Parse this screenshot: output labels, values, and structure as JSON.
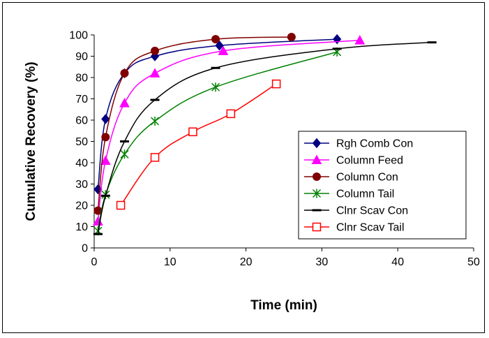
{
  "chart_data": {
    "type": "line",
    "title": "",
    "xlabel": "Time (min)",
    "ylabel": "Cumulative Recovery (%)",
    "xlim": [
      0,
      50
    ],
    "ylim": [
      0,
      100
    ],
    "x_ticks": [
      0,
      10,
      20,
      30,
      40,
      50
    ],
    "y_ticks": [
      0,
      10,
      20,
      30,
      40,
      50,
      60,
      70,
      80,
      90,
      100
    ],
    "grid": false,
    "legend_position": "bottom-right",
    "series": [
      {
        "name": "Rgh Comb Con",
        "color": "#000080",
        "marker": "diamond",
        "x": [
          0.5,
          1.5,
          4,
          8,
          16.5,
          32
        ],
        "y": [
          27.5,
          60.5,
          82,
          90,
          95,
          98
        ]
      },
      {
        "name": "Column Feed",
        "color": "#ff00ff",
        "marker": "triangle",
        "x": [
          0.5,
          1.5,
          4,
          8,
          17,
          35
        ],
        "y": [
          12.5,
          41,
          68,
          82,
          92.5,
          97.5
        ]
      },
      {
        "name": "Column Con",
        "color": "#800000",
        "marker": "circle",
        "x": [
          0.5,
          1.5,
          4,
          8,
          16,
          26
        ],
        "y": [
          17.5,
          52,
          82,
          92.5,
          98,
          99
        ]
      },
      {
        "name": "Column Tail",
        "color": "#008000",
        "marker": "asterisk",
        "x": [
          0.5,
          1.5,
          4,
          8,
          16,
          32
        ],
        "y": [
          8,
          25,
          44,
          59.5,
          75.5,
          92
        ]
      },
      {
        "name": "Clnr Scav Con",
        "color": "#000000",
        "marker": "dash",
        "x": [
          0.5,
          1.5,
          4,
          8,
          16,
          32,
          44.5
        ],
        "y": [
          6.5,
          24.5,
          50,
          69.5,
          84.5,
          93.5,
          96.5
        ]
      },
      {
        "name": "Clnr Scav Tail",
        "color": "#ff0000",
        "marker": "square",
        "x": [
          3.5,
          8,
          13,
          18,
          24
        ],
        "y": [
          20,
          42.5,
          54.5,
          63,
          77
        ]
      }
    ]
  }
}
